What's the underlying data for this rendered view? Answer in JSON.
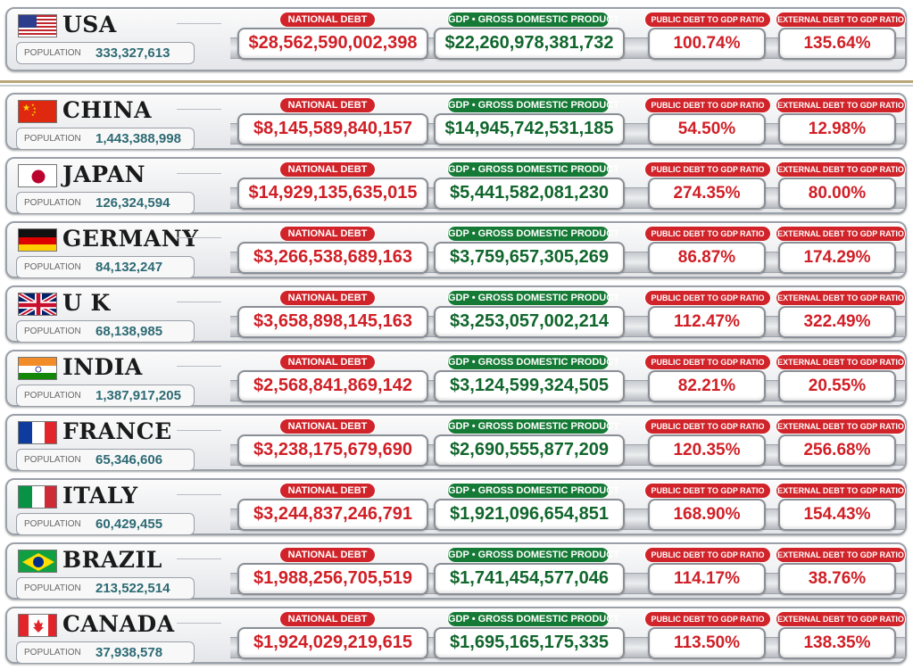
{
  "labels": {
    "population": "POPULATION",
    "national_debt": "NATIONAL DEBT",
    "gdp": "GDP • GROSS DOMESTIC PRODUCT",
    "public_ratio": "PUBLIC DEBT TO GDP RATIO",
    "external_ratio": "EXTERNAL DEBT TO GDP RATIO"
  },
  "colors": {
    "debt_red": "#d01f26",
    "gdp_green": "#11662c",
    "population_teal": "#2d6a74"
  },
  "countries": [
    {
      "name": "USA",
      "flag": "us-flag",
      "population": "333,327,613",
      "national_debt": "$28,562,590,002,398",
      "gdp": "$22,260,978,381,732",
      "public_ratio": "100.74%",
      "external_ratio": "135.64%"
    },
    {
      "name": "CHINA",
      "flag": "china-flag",
      "population": "1,443,388,998",
      "national_debt": "$8,145,589,840,157",
      "gdp": "$14,945,742,531,185",
      "public_ratio": "54.50%",
      "external_ratio": "12.98%"
    },
    {
      "name": "JAPAN",
      "flag": "japan-flag",
      "population": "126,324,594",
      "national_debt": "$14,929,135,635,015",
      "gdp": "$5,441,582,081,230",
      "public_ratio": "274.35%",
      "external_ratio": "80.00%"
    },
    {
      "name": "GERMANY",
      "flag": "germany-flag",
      "population": "84,132,247",
      "national_debt": "$3,266,538,689,163",
      "gdp": "$3,759,657,305,269",
      "public_ratio": "86.87%",
      "external_ratio": "174.29%"
    },
    {
      "name": "U K",
      "flag": "uk-flag",
      "population": "68,138,985",
      "national_debt": "$3,658,898,145,163",
      "gdp": "$3,253,057,002,214",
      "public_ratio": "112.47%",
      "external_ratio": "322.49%"
    },
    {
      "name": "INDIA",
      "flag": "india-flag",
      "population": "1,387,917,205",
      "national_debt": "$2,568,841,869,142",
      "gdp": "$3,124,599,324,505",
      "public_ratio": "82.21%",
      "external_ratio": "20.55%"
    },
    {
      "name": "FRANCE",
      "flag": "france-flag",
      "population": "65,346,606",
      "national_debt": "$3,238,175,679,690",
      "gdp": "$2,690,555,877,209",
      "public_ratio": "120.35%",
      "external_ratio": "256.68%"
    },
    {
      "name": "ITALY",
      "flag": "italy-flag",
      "population": "60,429,455",
      "national_debt": "$3,244,837,246,791",
      "gdp": "$1,921,096,654,851",
      "public_ratio": "168.90%",
      "external_ratio": "154.43%"
    },
    {
      "name": "BRAZIL",
      "flag": "brazil-flag",
      "population": "213,522,514",
      "national_debt": "$1,988,256,705,519",
      "gdp": "$1,741,454,577,046",
      "public_ratio": "114.17%",
      "external_ratio": "38.76%"
    },
    {
      "name": "CANADA",
      "flag": "canada-flag",
      "population": "37,938,578",
      "national_debt": "$1,924,029,219,615",
      "gdp": "$1,695,165,175,335",
      "public_ratio": "113.50%",
      "external_ratio": "138.35%"
    }
  ]
}
